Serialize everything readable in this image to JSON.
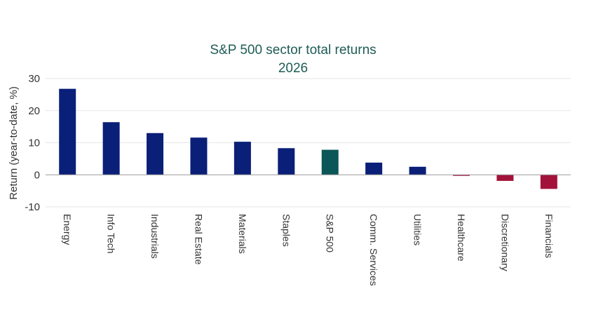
{
  "chart_data": {
    "type": "bar",
    "title": "S&P 500 sector total returns",
    "subtitle": "2026",
    "xlabel": "",
    "ylabel": "Return (year-to-date, %)",
    "ylim": [
      -10,
      30
    ],
    "yticks": [
      30,
      20,
      10,
      0,
      -10
    ],
    "grid": true,
    "legend": "none",
    "categories": [
      "Energy",
      "Info Tech",
      "Industrials",
      "Real Estate",
      "Materials",
      "Staples",
      "S&P 500",
      "Comm. Services",
      "Utilities",
      "Healthcare",
      "Discretionary",
      "Financials"
    ],
    "values": [
      26.8,
      16.4,
      13.0,
      11.6,
      10.3,
      8.3,
      7.8,
      3.8,
      2.5,
      -0.3,
      -1.9,
      -4.4
    ],
    "colors": {
      "positive": "#0a1f78",
      "benchmark": "#0b5656",
      "negative": "#a3123a"
    },
    "benchmark_category": "S&P 500"
  }
}
